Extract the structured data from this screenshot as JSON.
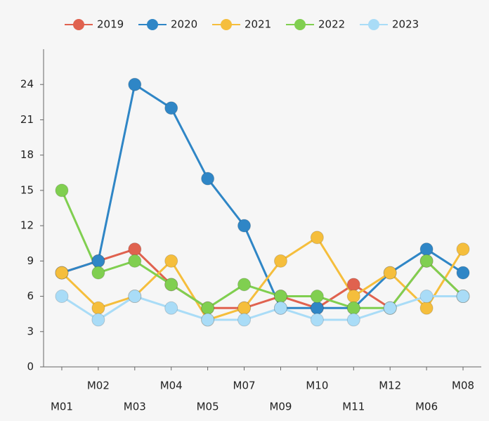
{
  "chart_data": {
    "type": "line",
    "categories": [
      "M01",
      "M02",
      "M03",
      "M04",
      "M05",
      "M07",
      "M09",
      "M10",
      "M11",
      "M12",
      "M06",
      "M08"
    ],
    "series": [
      {
        "name": "2019",
        "color": "#e0624f",
        "values": [
          8,
          9,
          10,
          7,
          5,
          5,
          6,
          5,
          7,
          5,
          9,
          6
        ]
      },
      {
        "name": "2020",
        "color": "#2f86c6",
        "values": [
          8,
          9,
          24,
          22,
          16,
          12,
          5,
          5,
          5,
          8,
          10,
          8
        ]
      },
      {
        "name": "2021",
        "color": "#f5be3c",
        "values": [
          8,
          5,
          6,
          9,
          4,
          5,
          9,
          11,
          6,
          8,
          5,
          10
        ]
      },
      {
        "name": "2022",
        "color": "#80cf50",
        "values": [
          15,
          8,
          9,
          7,
          5,
          7,
          6,
          6,
          5,
          5,
          9,
          6
        ]
      },
      {
        "name": "2023",
        "color": "#a9dcf7",
        "values": [
          6,
          4,
          6,
          5,
          4,
          4,
          5,
          4,
          4,
          5,
          6,
          6
        ]
      }
    ],
    "ylim": [
      0,
      27
    ],
    "yticks": [
      0,
      3,
      6,
      9,
      12,
      15,
      18,
      21,
      24
    ],
    "legend": "top"
  }
}
